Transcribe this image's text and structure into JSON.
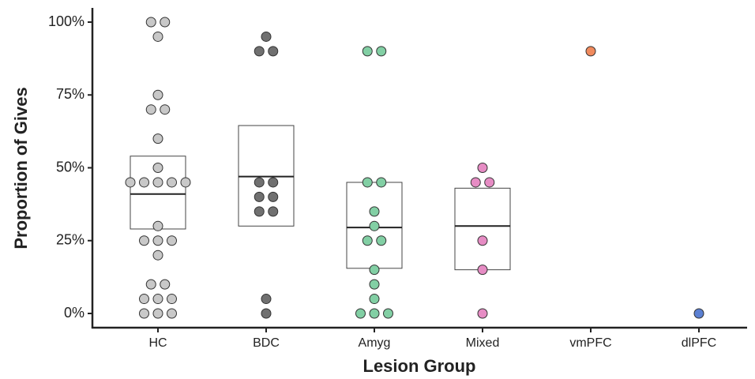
{
  "chart_data": {
    "type": "dotbox",
    "xlabel": "Lesion Group",
    "ylabel": "Proportion of Gives",
    "categories": [
      "HC",
      "BDC",
      "Amyg",
      "Mixed",
      "vmPFC",
      "dlPFC"
    ],
    "colors": [
      "#c8c8c8",
      "#707070",
      "#82cfa4",
      "#e68cc4",
      "#f08a5d",
      "#5b80d2"
    ],
    "values": [
      [
        100,
        100,
        95,
        75,
        70,
        70,
        60,
        50,
        45,
        45,
        45,
        45,
        45,
        30,
        25,
        25,
        25,
        20,
        10,
        10,
        5,
        5,
        5,
        0,
        0,
        0
      ],
      [
        95,
        90,
        90,
        45,
        45,
        40,
        40,
        35,
        35,
        5,
        0
      ],
      [
        90,
        90,
        45,
        45,
        35,
        30,
        25,
        25,
        15,
        10,
        5,
        0,
        0,
        0
      ],
      [
        50,
        45,
        45,
        25,
        15,
        0
      ],
      [
        90
      ],
      [
        0
      ]
    ],
    "box_low": [
      29,
      30,
      15.5,
      15,
      null,
      null
    ],
    "box_median": [
      41,
      47,
      29.5,
      30,
      null,
      null
    ],
    "box_high": [
      54,
      64.5,
      45,
      43,
      null,
      null
    ],
    "ylim": [
      0,
      100
    ],
    "yticks": [
      {
        "value": 0,
        "label": "0%"
      },
      {
        "value": 25,
        "label": "25%"
      },
      {
        "value": 50,
        "label": "50%"
      },
      {
        "value": 75,
        "label": "75%"
      },
      {
        "value": 100,
        "label": "100%"
      }
    ]
  }
}
